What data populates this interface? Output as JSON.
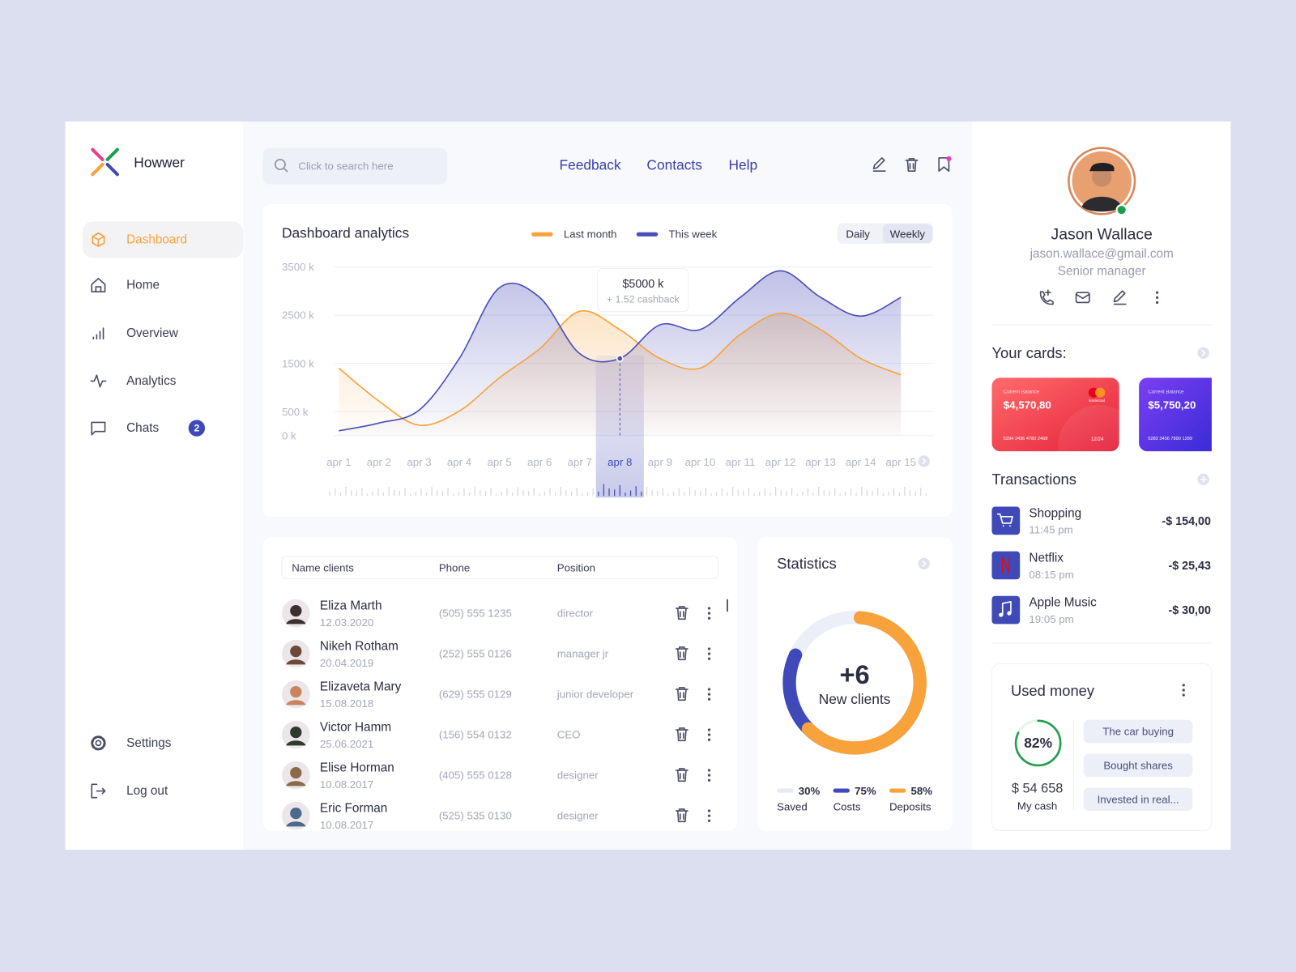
{
  "brand": "Howwer",
  "nav": [
    {
      "label": "Dashboard",
      "active": true
    },
    {
      "label": "Home"
    },
    {
      "label": "Overview"
    },
    {
      "label": "Analytics"
    },
    {
      "label": "Chats",
      "badge": "2"
    }
  ],
  "nav_bottom": [
    "Settings",
    "Log out"
  ],
  "search_placeholder": "Click to search here",
  "top_links": [
    "Feedback",
    "Contacts",
    "Help"
  ],
  "chart_data": {
    "type": "area",
    "title": "Dashboard analytics",
    "toggle": [
      "Daily",
      "Weekly"
    ],
    "categories": [
      "apr 1",
      "apr 2",
      "apr 3",
      "apr 4",
      "apr 5",
      "apr 6",
      "apr 7",
      "apr 8",
      "apr 9",
      "apr 10",
      "apr 11",
      "apr 12",
      "apr 13",
      "apr 14",
      "apr 15"
    ],
    "series": [
      {
        "name": "Last month",
        "color": "#f7a23b",
        "values": [
          1400,
          715,
          215,
          510,
          1200,
          1800,
          2580,
          2200,
          1600,
          1400,
          2100,
          2540,
          2200,
          1600,
          1260
        ]
      },
      {
        "name": "This week",
        "color": "#4b4fb8",
        "values": [
          100,
          260,
          530,
          1600,
          3070,
          2870,
          1700,
          1600,
          2300,
          2200,
          2870,
          3420,
          2870,
          2480,
          2870
        ]
      }
    ],
    "ylim": [
      0,
      3500
    ],
    "yticks": [
      {
        "value": 0,
        "label": "0 k"
      },
      {
        "value": 500,
        "label": "500 k"
      },
      {
        "value": 1500,
        "label": "1500 k"
      },
      {
        "value": 2500,
        "label": "2500 k"
      },
      {
        "value": 3500,
        "label": "3500 k"
      }
    ],
    "grid": true,
    "highlight": "apr 8",
    "tooltip": {
      "title": "$5000 k",
      "subtitle": "+ 1.52 cashback"
    }
  },
  "clients": {
    "headers": [
      "Name clients",
      "Phone",
      "Position"
    ],
    "rows": [
      {
        "name": "Eliza Marth",
        "date": "12.03.2020",
        "phone": "(505) 555 1235",
        "position": "director"
      },
      {
        "name": "Nikeh Rotham",
        "date": "20.04.2019",
        "phone": "(252) 555 0126",
        "position": "manager jr"
      },
      {
        "name": "Elizaveta Mary",
        "date": "15.08.2018",
        "phone": "(629) 555 0129",
        "position": "junior developer"
      },
      {
        "name": "Victor Hamm",
        "date": "25.06.2021",
        "phone": "(156) 554 0132",
        "position": "CEO"
      },
      {
        "name": "Elise Horman",
        "date": "10.08.2017",
        "phone": "(405) 555 0128",
        "position": "designer"
      },
      {
        "name": "Eric Forman",
        "date": "10.08.2017",
        "phone": "(525) 535 0130",
        "position": "designer"
      }
    ]
  },
  "statistics": {
    "title": "Statistics",
    "value": "+6",
    "caption": "New clients",
    "legend": [
      {
        "value": "30%",
        "label": "Saved",
        "color": "#e6e8f5"
      },
      {
        "value": "75%",
        "label": "Costs",
        "color": "#3f4ab8"
      },
      {
        "value": "58%",
        "label": "Deposits",
        "color": "#f7a23b"
      }
    ]
  },
  "profile": {
    "name": "Jason Wallace",
    "email": "jason.wallace@gmail.com",
    "role": "Senior manager"
  },
  "cards": {
    "title": "Your cards:",
    "items": [
      {
        "label": "Current Balance",
        "balance": "$4,570,80",
        "number": "5294 2436 4780 2468",
        "expiry": "12/24",
        "brand": "mastercard"
      },
      {
        "label": "Current Balance",
        "balance": "$5,750,20",
        "number": "5282 3456 7890 1289"
      }
    ]
  },
  "transactions": {
    "title": "Transactions",
    "items": [
      {
        "name": "Shopping",
        "time": "11:45 pm",
        "amount": "-$ 154,00"
      },
      {
        "name": "Netflix",
        "time": "08:15 pm",
        "amount": "-$ 25,43"
      },
      {
        "name": "Apple Music",
        "time": "19:05 pm",
        "amount": "-$ 30,00"
      }
    ]
  },
  "used_money": {
    "title": "Used money",
    "percent": "82%",
    "amount": "$ 54 658",
    "caption": "My cash",
    "tags": [
      "The car buying",
      "Bought shares",
      "Invested in real..."
    ]
  }
}
